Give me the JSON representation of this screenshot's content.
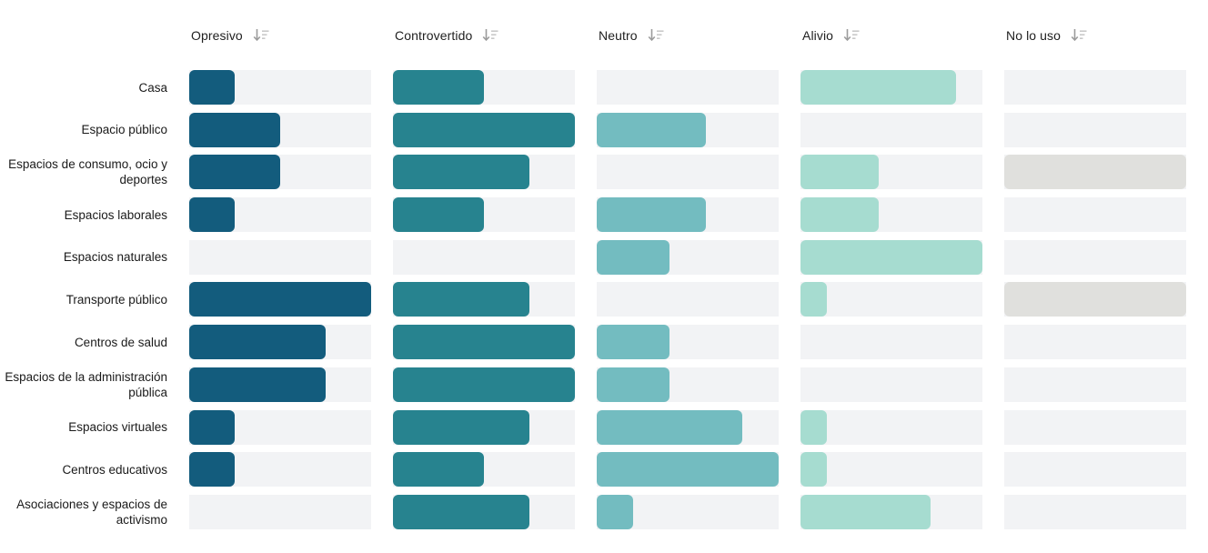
{
  "page": {
    "background": "#ffffff"
  },
  "icons": {
    "column_sort": "sort-descending-icon"
  },
  "colors": {
    "track": "#f2f3f5",
    "sort_icon_arrow": "#9b9b9b",
    "sort_icon_lines": "#c9c9c9",
    "row_label_text": "#1a1a1a",
    "header_text": "#212121"
  },
  "chart_data": {
    "type": "bar",
    "variant": "horizontal-bar-matrix",
    "orientation": "horizontal",
    "title": "",
    "xlabel": "",
    "ylabel": "",
    "xlim": [
      0,
      100
    ],
    "grid": false,
    "legend_position": "none",
    "track_color": "#f2f3f5",
    "categories": [
      "Casa",
      "Espacio público",
      "Espacios de consumo, ocio y deportes",
      "Espacios laborales",
      "Espacios naturales",
      "Transporte público",
      "Centros de salud",
      "Espacios de la administración pública",
      "Espacios virtuales",
      "Centros educativos",
      "Asociaciones y espacios de activismo"
    ],
    "series": [
      {
        "name": "Opresivo",
        "color": "#135c7d",
        "values_pct": [
          25,
          50,
          50,
          25,
          0,
          100,
          75,
          75,
          25,
          25,
          0
        ]
      },
      {
        "name": "Controvertido",
        "color": "#27838f",
        "values_pct": [
          50,
          100,
          75,
          50,
          0,
          75,
          100,
          100,
          75,
          50,
          75
        ]
      },
      {
        "name": "Neutro",
        "color": "#73bcc0",
        "values_pct": [
          0,
          60,
          0,
          60,
          40,
          0,
          40,
          40,
          80,
          100,
          20
        ]
      },
      {
        "name": "Alivio",
        "color": "#a6dcd0",
        "values_pct": [
          85.7,
          0,
          42.9,
          42.9,
          100,
          14.3,
          0,
          0,
          14.3,
          14.3,
          71.4
        ]
      },
      {
        "name": "No lo uso",
        "color": "#e0e0dd",
        "values_pct": [
          0,
          0,
          100,
          0,
          0,
          100,
          0,
          0,
          0,
          0,
          0
        ]
      }
    ]
  }
}
